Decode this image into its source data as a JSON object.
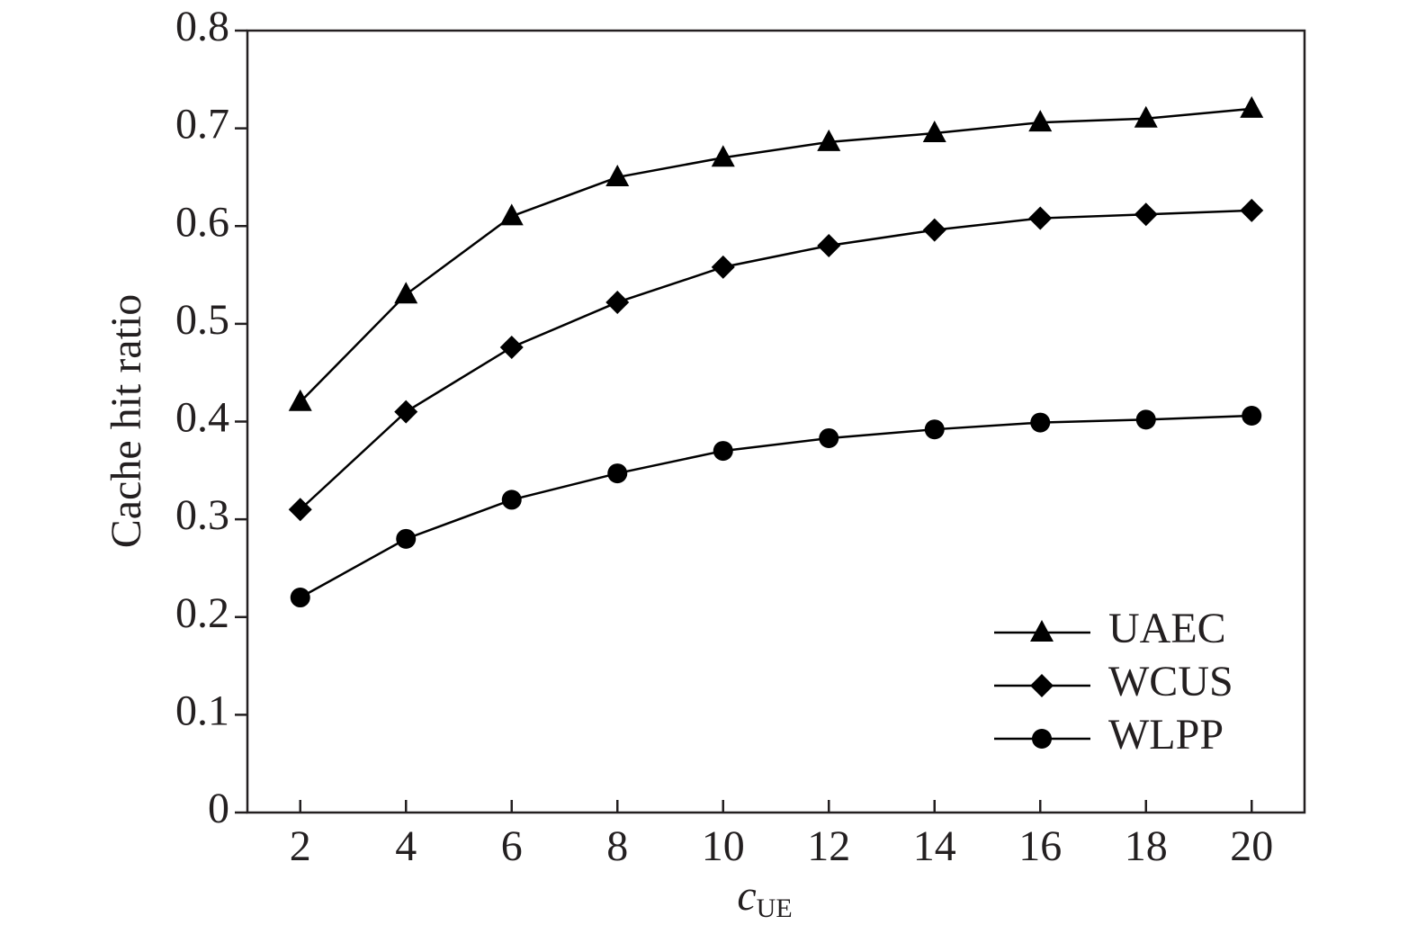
{
  "chart_data": {
    "type": "line",
    "x_label": "c",
    "x_label_subscript": "UE",
    "y_label": "Cache hit ratio",
    "x": [
      2,
      4,
      6,
      8,
      10,
      12,
      14,
      16,
      18,
      20
    ],
    "series": [
      {
        "name": "UAEC",
        "color": "#000000",
        "marker": "triangle",
        "values": [
          0.42,
          0.53,
          0.61,
          0.65,
          0.67,
          0.686,
          0.695,
          0.706,
          0.71,
          0.72
        ]
      },
      {
        "name": "WCUS",
        "color": "#000000",
        "marker": "diamond",
        "values": [
          0.31,
          0.41,
          0.476,
          0.522,
          0.558,
          0.58,
          0.596,
          0.608,
          0.612,
          0.616
        ]
      },
      {
        "name": "WLPP",
        "color": "#000000",
        "marker": "circle",
        "values": [
          0.22,
          0.28,
          0.32,
          0.347,
          0.37,
          0.383,
          0.392,
          0.399,
          0.402,
          0.406
        ]
      }
    ],
    "xlim": [
      1,
      21
    ],
    "xticks": [
      2,
      4,
      6,
      8,
      10,
      12,
      14,
      16,
      18,
      20
    ],
    "ylim": [
      0,
      0.8
    ],
    "yticks": [
      0,
      0.1,
      0.2,
      0.3,
      0.4,
      0.5,
      0.6,
      0.7,
      0.8
    ],
    "grid": false,
    "legend": "lower right"
  }
}
